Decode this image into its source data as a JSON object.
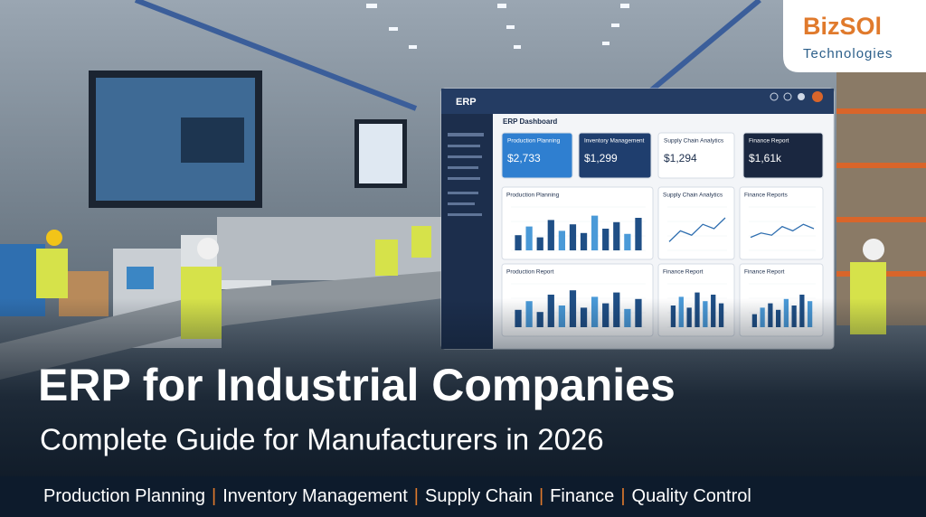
{
  "logo": {
    "name": "BizSOl",
    "tagline": "Technologies"
  },
  "dashboard": {
    "app": "ERP",
    "heading": "ERP Dashboard",
    "cards": [
      {
        "label": "Production Planning",
        "value": "$2,733"
      },
      {
        "label": "Inventory Management",
        "value": "$1,299"
      },
      {
        "label": "Supply Chain Analytics",
        "value": "$1,294"
      },
      {
        "label": "Finance Report",
        "value": "$1,61k"
      }
    ],
    "panels": [
      {
        "title": "Production Planning",
        "type": "bar",
        "values": [
          35,
          55,
          30,
          70,
          45,
          60,
          40,
          80,
          50,
          65,
          38,
          75
        ]
      },
      {
        "title": "Supply Chain Analytics",
        "type": "line",
        "values": [
          20,
          45,
          35,
          60,
          50,
          75
        ]
      },
      {
        "title": "Finance Reports",
        "type": "line",
        "values": [
          30,
          40,
          35,
          55,
          45,
          60,
          50
        ]
      },
      {
        "title": "Production Report",
        "type": "bar",
        "values": [
          40,
          60,
          35,
          75,
          50,
          85,
          45,
          70,
          55,
          80,
          42,
          65
        ]
      },
      {
        "title": "Finance Report",
        "type": "bar",
        "values": [
          50,
          70,
          45,
          80,
          60,
          75,
          55
        ]
      },
      {
        "title": "Finance Report",
        "type": "bar",
        "values": [
          30,
          45,
          55,
          40,
          65,
          50,
          75,
          60
        ]
      }
    ]
  },
  "headline": "ERP for Industrial Companies",
  "subheadline": "Complete Guide for Manufacturers in 2026",
  "topics": [
    "Production Planning",
    "Inventory Management",
    "Supply Chain",
    "Finance",
    "Quality Control"
  ]
}
